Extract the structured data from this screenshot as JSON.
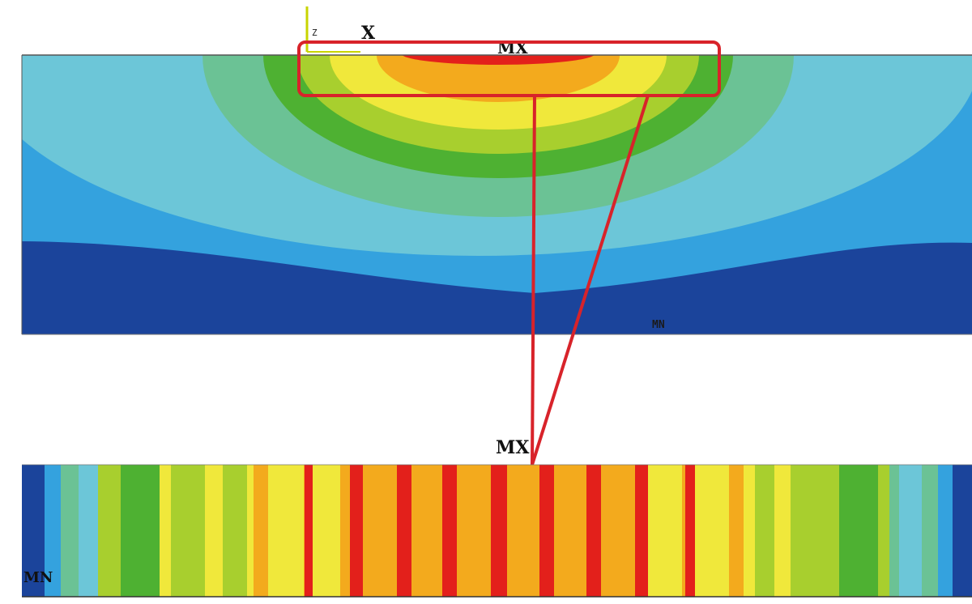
{
  "top_plot": {
    "axis_triad": {
      "z_label": "Z",
      "x_label": "X"
    },
    "max_label": "MX",
    "min_label": "MN"
  },
  "bottom_strip": {
    "max_label": "MX",
    "min_label": "MN"
  },
  "colors": {
    "level_1": "#1b449b",
    "level_2": "#34a2de",
    "level_3": "#6cc6d8",
    "level_4": "#6bc295",
    "level_5": "#4eb132",
    "level_6": "#a8cf2e",
    "level_7": "#f0e83b",
    "level_8": "#f3aa1d",
    "level_9": "#e3201b",
    "highlight": "#d8232a"
  }
}
